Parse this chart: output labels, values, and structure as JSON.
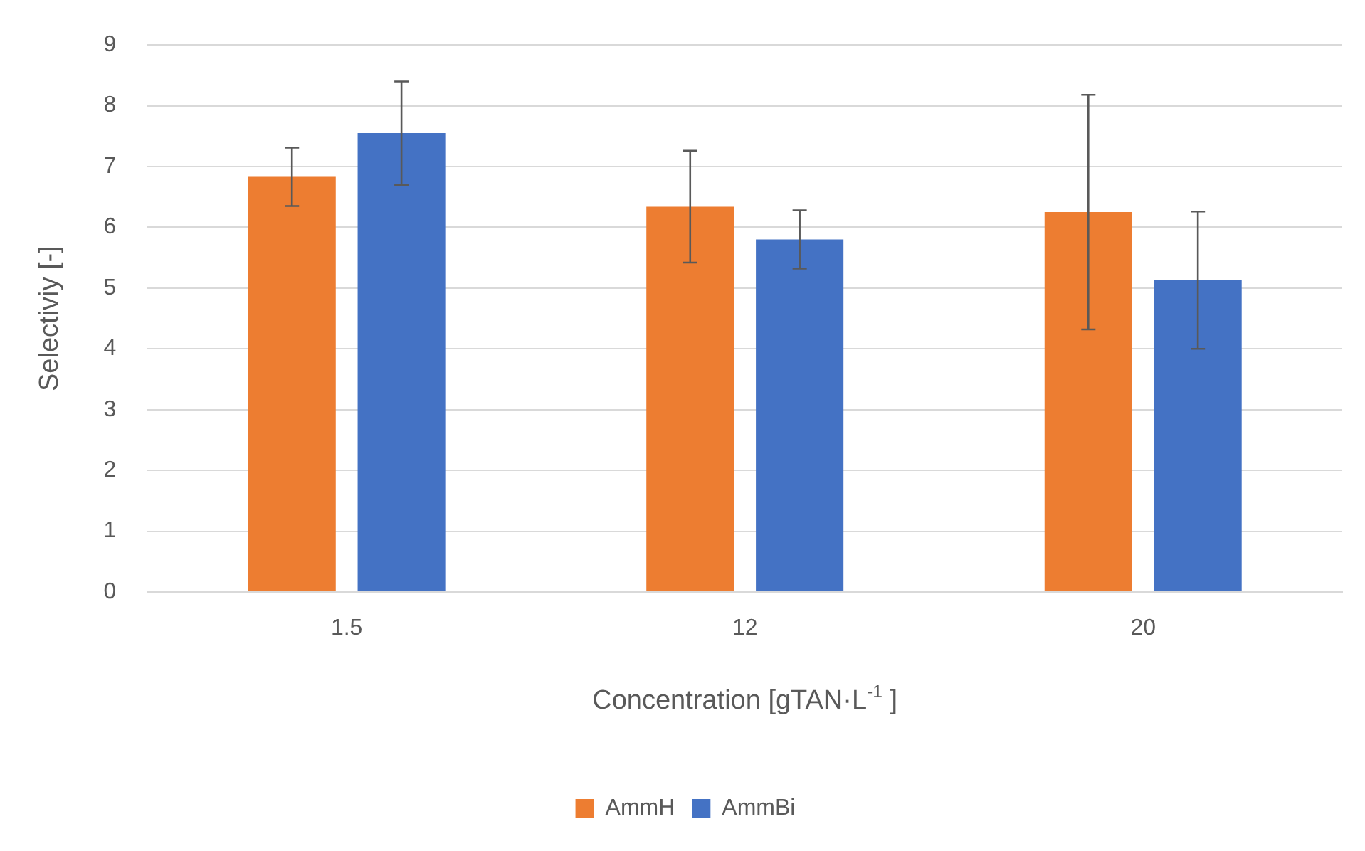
{
  "chart_data": {
    "type": "bar",
    "xlabel": "Concentration [gTAN·L$^{-1}$ ]",
    "ylabel": "Selectiviy [-]",
    "categories": [
      "1.5",
      "12",
      "20"
    ],
    "series": [
      {
        "name": "AmmH",
        "color": "#ed7d31",
        "values": [
          6.83,
          6.34,
          6.25
        ],
        "errors": [
          0.48,
          0.92,
          1.93
        ]
      },
      {
        "name": "AmmBi",
        "color": "#4472c4",
        "values": [
          7.55,
          5.8,
          5.13
        ],
        "errors": [
          0.85,
          0.48,
          1.13
        ]
      }
    ],
    "ylim": [
      0,
      9
    ],
    "yticks": [
      0,
      1,
      2,
      3,
      4,
      5,
      6,
      7,
      8,
      9
    ],
    "grid": "y",
    "legend": "bottom"
  }
}
